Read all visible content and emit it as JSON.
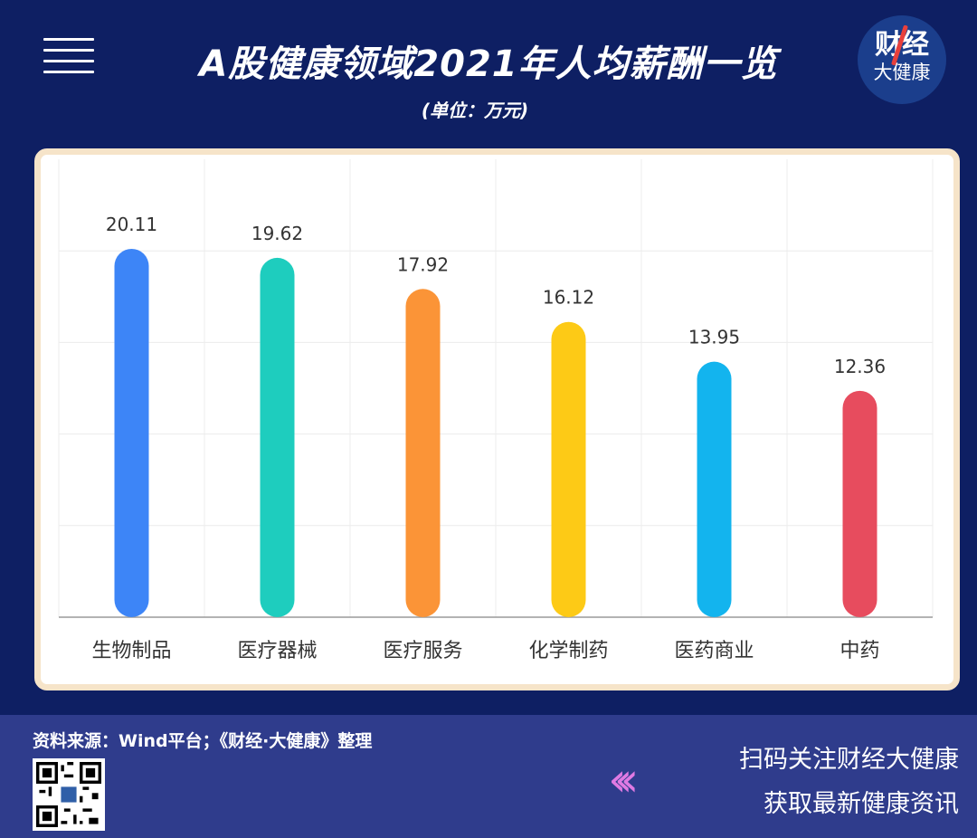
{
  "header": {
    "title": "A股健康领域2021年人均薪酬一览",
    "unit": "(单位：万元)",
    "logo_line1": "财经",
    "logo_line2": "大健康"
  },
  "chart_data": {
    "type": "bar",
    "categories": [
      "生物制品",
      "医疗器械",
      "医疗服务",
      "化学制药",
      "医药商业",
      "中药"
    ],
    "values": [
      20.11,
      19.62,
      17.92,
      16.12,
      13.95,
      12.36
    ],
    "value_labels": [
      "20.11",
      "19.62",
      "17.92",
      "16.12",
      "13.95",
      "12.36"
    ],
    "colors": [
      "#3d85f7",
      "#1ecdbe",
      "#fb9437",
      "#fdca16",
      "#13b4ee",
      "#e74c5e"
    ],
    "ylim": [
      0,
      25
    ],
    "grid": true,
    "legend": "none"
  },
  "footer": {
    "source": "资料来源：Wind平台；《财经·大健康》整理",
    "cta_line1": "扫码关注财经大健康",
    "cta_line2": "获取最新健康资讯",
    "chevron_glyph": "‹‹‹",
    "accent": "#e07ae3"
  }
}
